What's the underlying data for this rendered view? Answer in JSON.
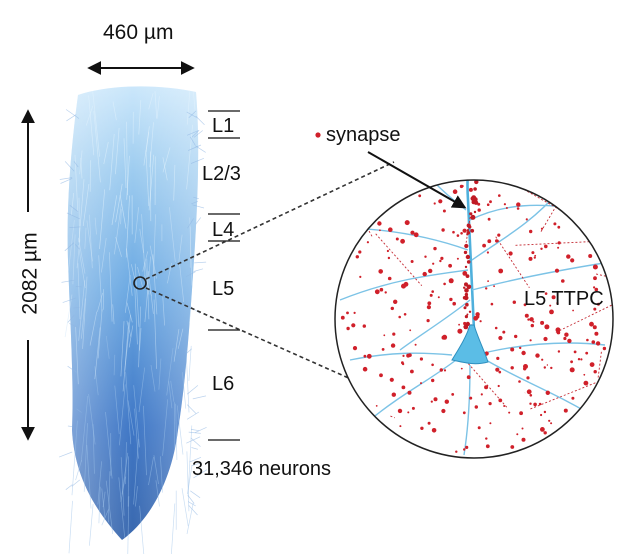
{
  "width_label": "460 µm",
  "height_label": "2082 µm",
  "layers": [
    "L1",
    "L2/3",
    "L4",
    "L5",
    "L6"
  ],
  "neuron_count": "31,346 neurons",
  "legend": {
    "marker_label": "synapse",
    "marker_color": "#d0202a"
  },
  "inset": {
    "cell_label": "L5 TTPC"
  },
  "colors": {
    "column_top": "#b8dcf4",
    "column_mid": "#5a9ad8",
    "column_bottom": "#2a5fb0",
    "dendrite": "#5bb8e0",
    "synapse": "#d0202a",
    "arrows": "#111111"
  }
}
